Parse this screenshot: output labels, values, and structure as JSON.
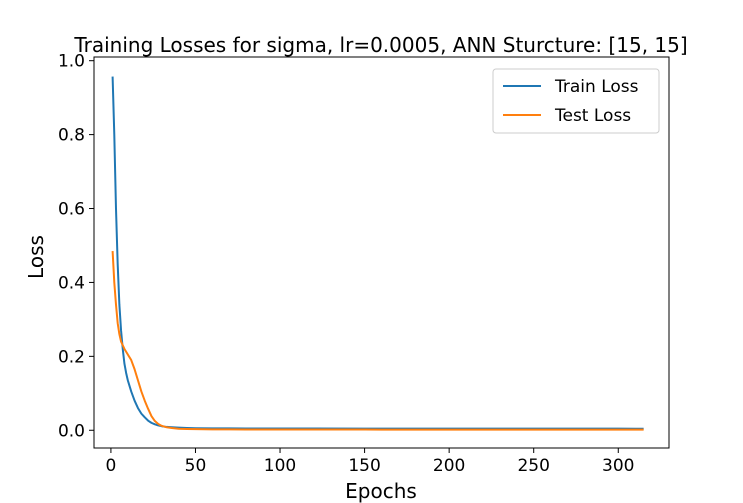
{
  "chart_data": {
    "type": "line",
    "title": "Training Losses for sigma, lr=0.0005, ANN Sturcture: [15, 15]",
    "xlabel": "Epochs",
    "ylabel": "Loss",
    "xlim": [
      -10,
      330
    ],
    "ylim": [
      -0.048,
      1.01
    ],
    "xticks": [
      0,
      50,
      100,
      150,
      200,
      250,
      300
    ],
    "yticks": [
      0.0,
      0.2,
      0.4,
      0.6,
      0.8,
      1.0
    ],
    "xtick_labels": [
      "0",
      "50",
      "100",
      "150",
      "200",
      "250",
      "300"
    ],
    "ytick_labels": [
      "0.0",
      "0.2",
      "0.4",
      "0.6",
      "0.8",
      "1.0"
    ],
    "legend_position": "top-right",
    "grid": false,
    "series": [
      {
        "name": "Train Loss",
        "color": "#1f77b4",
        "x": [
          1,
          2,
          3,
          4,
          5,
          6,
          7,
          8,
          9,
          10,
          12,
          14,
          16,
          18,
          20,
          22,
          24,
          26,
          28,
          30,
          33,
          36,
          40,
          45,
          50,
          60,
          70,
          80,
          100,
          120,
          150,
          180,
          200,
          220,
          250,
          280,
          300,
          315
        ],
        "y": [
          0.957,
          0.8,
          0.6,
          0.45,
          0.34,
          0.27,
          0.22,
          0.18,
          0.155,
          0.135,
          0.105,
          0.08,
          0.06,
          0.045,
          0.035,
          0.026,
          0.02,
          0.016,
          0.013,
          0.011,
          0.009,
          0.008,
          0.007,
          0.006,
          0.0055,
          0.005,
          0.005,
          0.0048,
          0.0047,
          0.0046,
          0.0045,
          0.0045,
          0.0044,
          0.0044,
          0.0043,
          0.0043,
          0.0043,
          0.0042
        ]
      },
      {
        "name": "Test Loss",
        "color": "#ff7f0e",
        "x": [
          1,
          2,
          3,
          4,
          5,
          6,
          7,
          8,
          10,
          12,
          14,
          16,
          18,
          20,
          22,
          24,
          26,
          28,
          30,
          33,
          36,
          40,
          45,
          50,
          60,
          70,
          80,
          100,
          120,
          150,
          180,
          200,
          220,
          250,
          280,
          300,
          315
        ],
        "y": [
          0.485,
          0.4,
          0.34,
          0.29,
          0.26,
          0.24,
          0.23,
          0.22,
          0.205,
          0.19,
          0.165,
          0.135,
          0.105,
          0.08,
          0.058,
          0.038,
          0.025,
          0.017,
          0.012,
          0.008,
          0.006,
          0.004,
          0.0035,
          0.003,
          0.0025,
          0.0023,
          0.0022,
          0.002,
          0.002,
          0.0019,
          0.0018,
          0.0018,
          0.0018,
          0.0017,
          0.0017,
          0.0017,
          0.0017
        ]
      }
    ]
  }
}
